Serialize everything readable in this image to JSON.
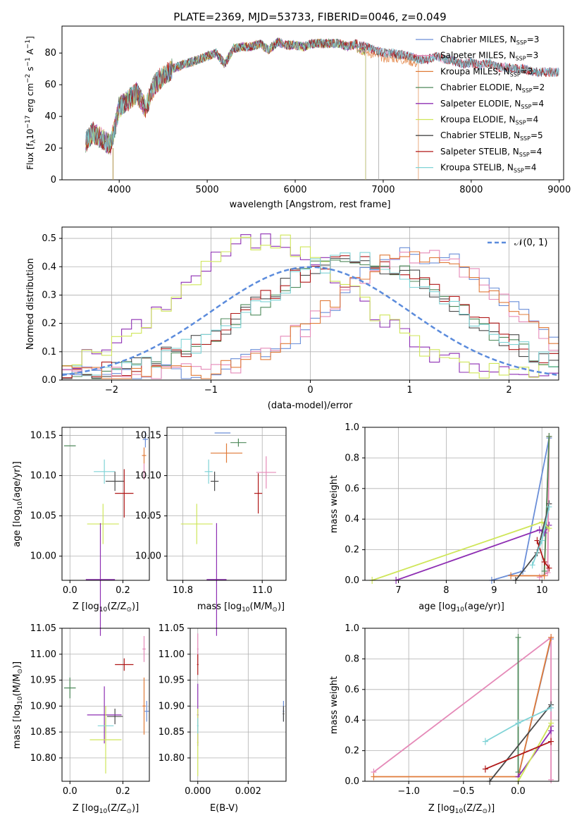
{
  "title": "PLATE=2369, MJD=53733, FIBERID=0046, z=0.049",
  "colors": {
    "Chabrier MILES": "#6a8ed8",
    "Salpeter MILES": "#e58ab8",
    "Kroupa MILES": "#e07b39",
    "Chabrier ELODIE": "#4f8a5b",
    "Salpeter ELODIE": "#8e2fb3",
    "Kroupa ELODIE": "#cfe659",
    "Chabrier STELIB": "#4a4a4a",
    "Salpeter STELIB": "#b01818",
    "Kroupa STELIB": "#7fd3d6",
    "Normal": "#5b8bdc"
  },
  "spectrum": {
    "xlabel": "wavelength [Angstrom, rest frame]",
    "ylabel_main": "Flux [f",
    "ylabel_sub": "λ",
    "ylabel_mid": "10",
    "ylabel_sup1": "−17",
    "ylabel_rest": " erg cm",
    "ylabel_sup2": "−2",
    "ylabel_s": " s",
    "ylabel_sup3": "−1",
    "ylabel_A": " A",
    "ylabel_sup4": "−1",
    "ylabel_end": "]",
    "xticks": [
      "4000",
      "5000",
      "6000",
      "7000",
      "8000",
      "9000"
    ],
    "yticks": [
      "0",
      "20",
      "40",
      "60",
      "80"
    ],
    "legend": [
      {
        "base": "Chabrier MILES, N",
        "sub": "SSP",
        "n": "=3"
      },
      {
        "base": "Salpeter MILES, N",
        "sub": "SSP",
        "n": "=3"
      },
      {
        "base": "Kroupa MILES, N",
        "sub": "SSP",
        "n": "=3"
      },
      {
        "base": "Chabrier ELODIE, N",
        "sub": "SSP",
        "n": "=2"
      },
      {
        "base": "Salpeter ELODIE, N",
        "sub": "SSP",
        "n": "=4"
      },
      {
        "base": "Kroupa ELODIE, N",
        "sub": "SSP",
        "n": "=4"
      },
      {
        "base": "Chabrier STELIB, N",
        "sub": "SSP",
        "n": "=5"
      },
      {
        "base": "Salpeter STELIB, N",
        "sub": "SSP",
        "n": "=4"
      },
      {
        "base": "Kroupa STELIB, N",
        "sub": "SSP",
        "n": "=4"
      }
    ]
  },
  "hist": {
    "xlabel": "(data-model)/error",
    "ylabel": "Normed distribution",
    "xticks": [
      "−2",
      "−1",
      "0",
      "1",
      "2"
    ],
    "yticks": [
      "0.0",
      "0.1",
      "0.2",
      "0.3",
      "0.4",
      "0.5"
    ],
    "legend_label": "𝒩(0, 1)"
  },
  "panels": {
    "age_label_a": "age  [log",
    "age_label_sub": "10",
    "age_label_b": "(age/yr)]",
    "z_label_a": "Z [log",
    "z_label_sub": "10",
    "z_label_b": "(Z/Z",
    "z_label_c": "⊙",
    "z_label_d": ")]",
    "mass_label_a": "mass [log",
    "mass_label_sub": "10",
    "mass_label_b": "(M/M",
    "mass_label_c": "⊙",
    "mass_label_d": ")]",
    "ebv_label": "E(B-V)",
    "mw_label": "mass weight",
    "p3_xticks": [
      "0.0",
      "0.2"
    ],
    "p3_yticks": [
      "10.15",
      "10.10",
      "10.05",
      "10.00"
    ],
    "p4_xticks": [
      "10.8",
      "11.0"
    ],
    "p5_xticks": [
      "7",
      "8",
      "9",
      "10"
    ],
    "p5_yticks": [
      "0.0",
      "0.2",
      "0.4",
      "0.6",
      "0.8",
      "1.0"
    ],
    "p6_yticks": [
      "10.80",
      "10.85",
      "10.90",
      "10.95",
      "11.00",
      "11.05"
    ],
    "p7_xticks": [
      "0.000",
      "0.002"
    ],
    "p8_xticks": [
      "−1.0",
      "−0.5",
      "0.0"
    ],
    "p8_yticks": [
      "0.0",
      "0.2",
      "0.4",
      "0.6",
      "0.8",
      "1.0"
    ]
  },
  "chart_data": [
    {
      "type": "line",
      "title": "PLATE=2369, MJD=53733, FIBERID=0046, z=0.049",
      "xlabel": "wavelength [Angstrom, rest frame]",
      "ylabel": "Flux [fλ10^-17 erg cm^-2 s^-1 A^-1]",
      "xlim": [
        3350,
        9050
      ],
      "ylim": [
        0,
        97
      ],
      "legend_position": "right",
      "envelope": {
        "x": [
          3620,
          3700,
          3800,
          3900,
          3950,
          4000,
          4100,
          4200,
          4300,
          4400,
          4500,
          4600,
          4700,
          4800,
          4900,
          5000,
          5100,
          5200,
          5300,
          5400,
          5500,
          5600,
          5700,
          5800,
          5900,
          6000,
          6100,
          6200,
          6300,
          6400,
          6500,
          6600,
          6700,
          6800,
          6900,
          7000,
          7100,
          7200,
          7300,
          7400,
          7500,
          7600,
          7700,
          7800,
          7900,
          8000,
          8100,
          8200,
          8300,
          8400,
          8500,
          8600,
          8700
        ],
        "y": [
          24,
          30,
          26,
          22,
          33,
          46,
          50,
          55,
          45,
          60,
          66,
          70,
          72,
          74,
          76,
          78,
          80,
          73,
          83,
          84,
          84,
          86,
          82,
          87,
          85,
          85,
          84,
          86,
          86,
          86,
          86,
          84,
          86,
          84,
          82,
          80,
          80,
          79,
          78,
          76,
          76,
          78,
          76,
          75,
          73,
          74,
          72,
          74,
          71,
          71,
          70,
          70,
          68
        ]
      },
      "series": [
        {
          "name": "Chabrier MILES, N_SSP=3",
          "cutoff": 9000
        },
        {
          "name": "Salpeter MILES, N_SSP=3",
          "cutoff": 9000
        },
        {
          "name": "Kroupa MILES, N_SSP=3",
          "cutoff": 7400
        },
        {
          "name": "Chabrier ELODIE, N_SSP=2",
          "cutoff": 6800
        },
        {
          "name": "Salpeter ELODIE, N_SSP=4",
          "cutoff": 6800
        },
        {
          "name": "Kroupa ELODIE, N_SSP=4",
          "cutoff": 6800
        },
        {
          "name": "Chabrier STELIB, N_SSP=5",
          "cutoff": 9000
        },
        {
          "name": "Salpeter STELIB, N_SSP=4",
          "cutoff": 9000
        },
        {
          "name": "Kroupa STELIB, N_SSP=4",
          "cutoff": 9000
        }
      ]
    },
    {
      "type": "line",
      "xlabel": "(data-model)/error",
      "ylabel": "Normed distribution",
      "xlim": [
        -2.5,
        2.5
      ],
      "ylim": [
        0,
        0.54
      ],
      "grid": true,
      "normal": {
        "label": "N(0,1)",
        "mu": 0,
        "sigma": 1
      },
      "groups": [
        {
          "shift": -0.45,
          "width": 0.9,
          "peak": 0.48,
          "names": [
            "Salpeter ELODIE",
            "Kroupa ELODIE"
          ]
        },
        {
          "shift": 0.45,
          "width": 1.0,
          "peak": 0.41,
          "names": [
            "Chabrier ELODIE",
            "Chabrier STELIB",
            "Salpeter STELIB",
            "Kroupa STELIB"
          ]
        },
        {
          "shift": 1.1,
          "width": 0.85,
          "peak": 0.43,
          "names": [
            "Chabrier MILES",
            "Salpeter MILES",
            "Kroupa MILES"
          ]
        }
      ]
    },
    {
      "type": "scatter",
      "xlabel": "Z [log10(Z/Z⊙)]",
      "ylabel": "age [log10(age/yr)]",
      "xlim": [
        -0.03,
        0.3
      ],
      "ylim": [
        9.97,
        10.16
      ],
      "points": [
        {
          "name": "Chabrier ELODIE",
          "x": 0.0,
          "y": 10.137,
          "xerr": 0.022,
          "yerr": 0.0
        },
        {
          "name": "Chabrier MILES",
          "x": 0.285,
          "y": 10.145,
          "xerr": 0.01,
          "yerr": 0.01
        },
        {
          "name": "Kroupa MILES",
          "x": 0.28,
          "y": 10.125,
          "xerr": 0.008,
          "yerr": 0.01
        },
        {
          "name": "Salpeter MILES",
          "x": 0.28,
          "y": 10.105,
          "xerr": 0.005,
          "yerr": 0.01
        },
        {
          "name": "Kroupa STELIB",
          "x": 0.13,
          "y": 10.105,
          "xerr": 0.04,
          "yerr": 0.015
        },
        {
          "name": "Chabrier STELIB",
          "x": 0.17,
          "y": 10.093,
          "xerr": 0.035,
          "yerr": 0.012
        },
        {
          "name": "Salpeter STELIB",
          "x": 0.205,
          "y": 10.078,
          "xerr": 0.035,
          "yerr": 0.03
        },
        {
          "name": "Kroupa ELODIE",
          "x": 0.125,
          "y": 10.04,
          "xerr": 0.06,
          "yerr": 0.025
        },
        {
          "name": "Salpeter ELODIE",
          "x": 0.115,
          "y": 9.971,
          "xerr": 0.055,
          "yerr": 0.07
        }
      ]
    },
    {
      "type": "scatter",
      "xlabel": "mass [log10(M/M⊙)]",
      "ylabel": "age [log10(age/yr)]",
      "xlim": [
        10.76,
        11.06
      ],
      "ylim": [
        9.97,
        10.16
      ],
      "points": [
        {
          "name": "Chabrier MILES",
          "x": 10.9,
          "y": 10.153,
          "xerr": 0.02,
          "yerr": 0.0
        },
        {
          "name": "Chabrier ELODIE",
          "x": 10.94,
          "y": 10.141,
          "xerr": 0.02,
          "yerr": 0.005
        },
        {
          "name": "Kroupa MILES",
          "x": 10.91,
          "y": 10.128,
          "xerr": 0.04,
          "yerr": 0.012
        },
        {
          "name": "Kroupa STELIB",
          "x": 10.865,
          "y": 10.105,
          "xerr": 0.01,
          "yerr": 0.015
        },
        {
          "name": "Salpeter MILES",
          "x": 11.01,
          "y": 10.104,
          "xerr": 0.025,
          "yerr": 0.02
        },
        {
          "name": "Chabrier STELIB",
          "x": 10.88,
          "y": 10.093,
          "xerr": 0.01,
          "yerr": 0.012
        },
        {
          "name": "Salpeter STELIB",
          "x": 10.99,
          "y": 10.078,
          "xerr": 0.01,
          "yerr": 0.025
        },
        {
          "name": "Kroupa ELODIE",
          "x": 10.835,
          "y": 10.04,
          "xerr": 0.04,
          "yerr": 0.025
        },
        {
          "name": "Salpeter ELODIE",
          "x": 10.885,
          "y": 9.971,
          "xerr": 0.025,
          "yerr": 0.07
        }
      ]
    },
    {
      "type": "line",
      "xlabel": "age [log10(age/yr)]",
      "ylabel": "mass weight",
      "xlim": [
        6.3,
        10.35
      ],
      "ylim": [
        0,
        1
      ],
      "grid": true,
      "series": [
        {
          "name": "Chabrier MILES",
          "x": [
            8.95,
            9.6,
            10.15
          ],
          "y": [
            0.0,
            0.06,
            0.93
          ]
        },
        {
          "name": "Salpeter MILES",
          "x": [
            9.95,
            10.12,
            10.15
          ],
          "y": [
            0.02,
            0.05,
            0.94
          ]
        },
        {
          "name": "Kroupa MILES",
          "x": [
            9.35,
            10.05,
            10.15
          ],
          "y": [
            0.03,
            0.03,
            0.94
          ]
        },
        {
          "name": "Chabrier ELODIE",
          "x": [
            10.05,
            10.15
          ],
          "y": [
            0.06,
            0.94
          ]
        },
        {
          "name": "Salpeter ELODIE",
          "x": [
            6.95,
            9.95,
            10.05,
            10.15
          ],
          "y": [
            0.0,
            0.33,
            0.31,
            0.36
          ]
        },
        {
          "name": "Kroupa ELODIE",
          "x": [
            6.45,
            10.0,
            10.15
          ],
          "y": [
            0.0,
            0.38,
            0.34
          ]
        },
        {
          "name": "Chabrier STELIB",
          "x": [
            9.45,
            9.9,
            10.15
          ],
          "y": [
            0.0,
            0.18,
            0.5
          ]
        },
        {
          "name": "Salpeter STELIB",
          "x": [
            9.9,
            10.05,
            10.15
          ],
          "y": [
            0.26,
            0.12,
            0.08
          ]
        },
        {
          "name": "Kroupa STELIB",
          "x": [
            9.8,
            10.0,
            10.15
          ],
          "y": [
            0.1,
            0.26,
            0.48
          ]
        }
      ]
    },
    {
      "type": "scatter",
      "xlabel": "Z [log10(Z/Z⊙)]",
      "ylabel": "mass [log10(M/M⊙)]",
      "xlim": [
        -0.03,
        0.3
      ],
      "ylim": [
        10.755,
        11.05
      ],
      "points": [
        {
          "name": "Chabrier ELODIE",
          "x": 0.0,
          "y": 10.935,
          "xerr": 0.022,
          "yerr": 0.02
        },
        {
          "name": "Salpeter MILES",
          "x": 0.28,
          "y": 11.01,
          "xerr": 0.006,
          "yerr": 0.025
        },
        {
          "name": "Kroupa MILES",
          "x": 0.28,
          "y": 10.9,
          "xerr": 0.006,
          "yerr": 0.055
        },
        {
          "name": "Chabrier MILES",
          "x": 0.29,
          "y": 10.89,
          "xerr": 0.008,
          "yerr": 0.02
        },
        {
          "name": "Salpeter STELIB",
          "x": 0.205,
          "y": 10.98,
          "xerr": 0.035,
          "yerr": 0.012
        },
        {
          "name": "Chabrier STELIB",
          "x": 0.17,
          "y": 10.88,
          "xerr": 0.03,
          "yerr": 0.015
        },
        {
          "name": "Salpeter ELODIE",
          "x": 0.13,
          "y": 10.883,
          "xerr": 0.065,
          "yerr": 0.055
        },
        {
          "name": "Kroupa STELIB",
          "x": 0.135,
          "y": 10.862,
          "xerr": 0.03,
          "yerr": 0.015
        },
        {
          "name": "Kroupa ELODIE",
          "x": 0.135,
          "y": 10.835,
          "xerr": 0.06,
          "yerr": 0.065
        }
      ]
    },
    {
      "type": "scatter",
      "xlabel": "E(B-V)",
      "ylabel": "mass [log10(M/M⊙)]",
      "xlim": [
        -0.0003,
        0.0035
      ],
      "ylim": [
        10.755,
        11.05
      ],
      "points": [
        {
          "name": "Salpeter MILES",
          "x": 0.0,
          "y": 11.01,
          "xerr": 3e-05,
          "yerr": 0.03
        },
        {
          "name": "Salpeter STELIB",
          "x": 0.0,
          "y": 10.98,
          "xerr": 3e-05,
          "yerr": 0.02
        },
        {
          "name": "Salpeter ELODIE",
          "x": 0.0,
          "y": 10.883,
          "xerr": 3e-05,
          "yerr": 0.06
        },
        {
          "name": "Kroupa ELODIE",
          "x": 0.0,
          "y": 10.83,
          "xerr": 3e-05,
          "yerr": 0.065
        },
        {
          "name": "Kroupa STELIB",
          "x": 0.0,
          "y": 10.862,
          "xerr": 3e-05,
          "yerr": 0.015
        },
        {
          "name": "Chabrier MILES",
          "x": 0.0034,
          "y": 10.89,
          "xerr": 3e-05,
          "yerr": 0.02
        },
        {
          "name": "Chabrier STELIB",
          "x": 0.0034,
          "y": 10.885,
          "xerr": 3e-05,
          "yerr": 0.015
        }
      ]
    },
    {
      "type": "line",
      "xlabel": "Z [log10(Z/Z⊙)]",
      "ylabel": "mass weight",
      "xlim": [
        -1.4,
        0.37
      ],
      "ylim": [
        0,
        1
      ],
      "grid": true,
      "series": [
        {
          "name": "Chabrier MILES",
          "x": [
            0.0,
            0.3
          ],
          "y": [
            0.03,
            0.93
          ]
        },
        {
          "name": "Salpeter MILES",
          "x": [
            -1.32,
            0.3,
            0.3
          ],
          "y": [
            0.06,
            0.94,
            0.01
          ]
        },
        {
          "name": "Kroupa MILES",
          "x": [
            -1.32,
            0.0,
            0.3
          ],
          "y": [
            0.03,
            0.03,
            0.94
          ]
        },
        {
          "name": "Chabrier ELODIE",
          "x": [
            0.0,
            0.0
          ],
          "y": [
            0.06,
            0.94
          ]
        },
        {
          "name": "Salpeter ELODIE",
          "x": [
            0.0,
            0.3,
            0.3
          ],
          "y": [
            0.03,
            0.33,
            0.36
          ]
        },
        {
          "name": "Kroupa ELODIE",
          "x": [
            0.0,
            0.3
          ],
          "y": [
            0.0,
            0.38
          ]
        },
        {
          "name": "Chabrier STELIB",
          "x": [
            -0.26,
            0.3
          ],
          "y": [
            0.0,
            0.5
          ]
        },
        {
          "name": "Salpeter STELIB",
          "x": [
            -0.3,
            0.3
          ],
          "y": [
            0.08,
            0.26
          ]
        },
        {
          "name": "Kroupa STELIB",
          "x": [
            -0.3,
            0.0,
            0.3
          ],
          "y": [
            0.26,
            0.38,
            0.48
          ]
        }
      ]
    }
  ]
}
